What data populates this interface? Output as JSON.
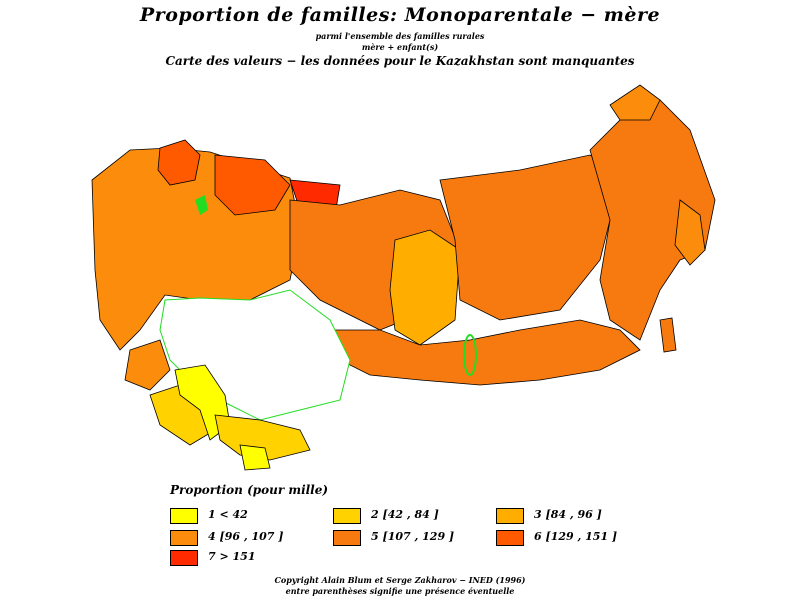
{
  "header": {
    "title": "Proportion  de familles:  Monoparentale  −  mère",
    "subtitle_line1": "parmi  l'ensemble  des  familles  rurales",
    "subtitle_line2": "mère  +  enfant(s)",
    "subtitle_line3": "Carte  des  valeurs  −  les  données  pour  le  Kazakhstan  sont  manquantes"
  },
  "map": {
    "region_border_color": "#000000",
    "water_color": "#22dd22",
    "missing_data_color": "#ffffff",
    "missing_data_border": "#22dd22"
  },
  "legend": {
    "title": "Proportion  (pour  mille)",
    "items": [
      {
        "label": "1  <  42",
        "color": "#ffff00"
      },
      {
        "label": "2  [42  ,  84  ]",
        "color": "#ffd200"
      },
      {
        "label": "3  [84  ,  96  ]",
        "color": "#ffae00"
      },
      {
        "label": "4  [96  ,  107  ]",
        "color": "#fb8c0c"
      },
      {
        "label": "5  [107  ,  129  ]",
        "color": "#f77a10"
      },
      {
        "label": "6  [129  ,  151  ]",
        "color": "#ff5a00"
      },
      {
        "label": "7  >  151",
        "color": "#ff2a00"
      }
    ]
  },
  "footer": {
    "copyright": "Copyright  Alain  Blum  et  Serge  Zakharov  −  INED  (1996)",
    "note": "entre  parenthèses  signifie  une  présence  éventuelle"
  }
}
